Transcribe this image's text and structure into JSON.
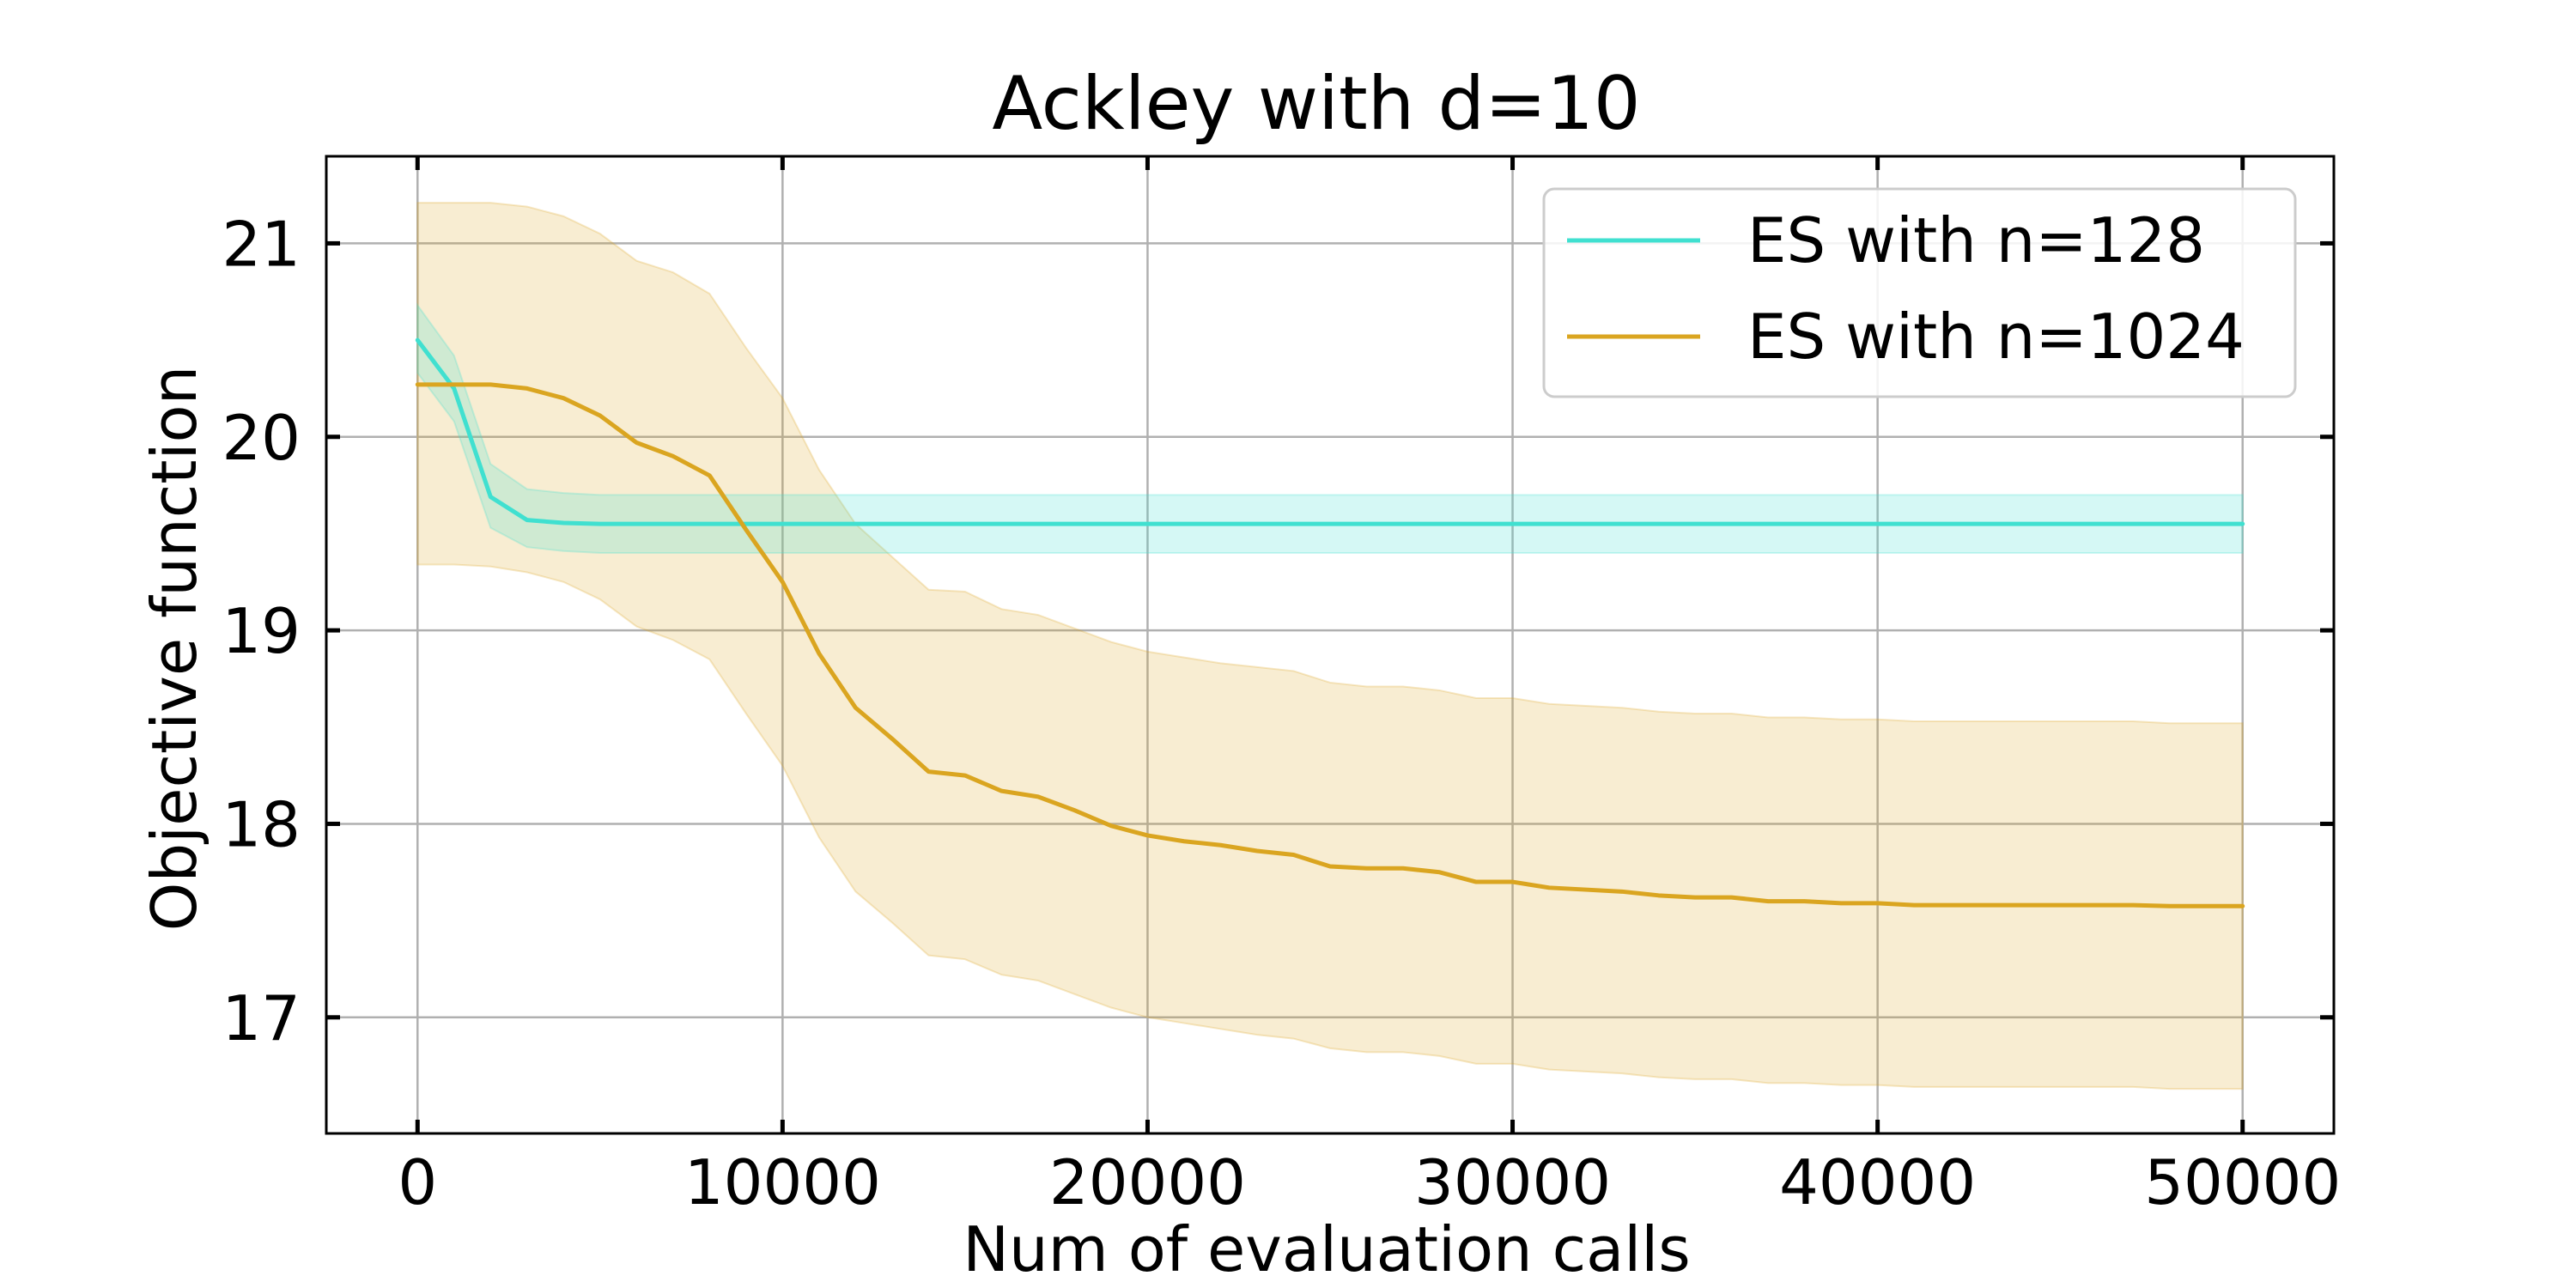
{
  "chart_data": {
    "type": "line",
    "title": "Ackley with d=10",
    "xlabel": "Num of evaluation calls",
    "ylabel": "Objective function",
    "xlim": [
      -2500,
      52500
    ],
    "ylim": [
      16.4,
      21.45
    ],
    "xticks": [
      0,
      10000,
      20000,
      30000,
      40000,
      50000
    ],
    "xtick_labels": [
      "0",
      "10000",
      "20000",
      "30000",
      "40000",
      "50000"
    ],
    "yticks": [
      17,
      18,
      19,
      20,
      21
    ],
    "ytick_labels": [
      "17",
      "18",
      "19",
      "20",
      "21"
    ],
    "grid": true,
    "legend_position": "top-right",
    "x": [
      0,
      1000,
      2000,
      3000,
      4000,
      5000,
      6000,
      7000,
      8000,
      9000,
      10000,
      11000,
      12000,
      13000,
      14000,
      15000,
      16000,
      17000,
      18000,
      19000,
      20000,
      21000,
      22000,
      23000,
      24000,
      25000,
      26000,
      27000,
      28000,
      29000,
      30000,
      31000,
      32000,
      33000,
      34000,
      35000,
      36000,
      37000,
      38000,
      39000,
      40000,
      41000,
      42000,
      43000,
      44000,
      45000,
      46000,
      47000,
      48000,
      49000,
      50000
    ],
    "series": [
      {
        "name": "ES with n=128",
        "color": "#40e0d0",
        "mean": [
          20.5,
          20.25,
          19.69,
          19.57,
          19.555,
          19.55,
          19.55,
          19.55,
          19.55,
          19.55,
          19.55,
          19.55,
          19.55,
          19.55,
          19.55,
          19.55,
          19.55,
          19.55,
          19.55,
          19.55,
          19.55,
          19.55,
          19.55,
          19.55,
          19.55,
          19.55,
          19.55,
          19.55,
          19.55,
          19.55,
          19.55,
          19.55,
          19.55,
          19.55,
          19.55,
          19.55,
          19.55,
          19.55,
          19.55,
          19.55,
          19.55,
          19.55,
          19.55,
          19.55,
          19.55,
          19.55,
          19.55,
          19.55,
          19.55,
          19.55,
          19.55
        ],
        "lower": [
          20.33,
          20.08,
          19.53,
          19.43,
          19.41,
          19.4,
          19.4,
          19.4,
          19.4,
          19.4,
          19.4,
          19.4,
          19.4,
          19.4,
          19.4,
          19.4,
          19.4,
          19.4,
          19.4,
          19.4,
          19.4,
          19.4,
          19.4,
          19.4,
          19.4,
          19.4,
          19.4,
          19.4,
          19.4,
          19.4,
          19.4,
          19.4,
          19.4,
          19.4,
          19.4,
          19.4,
          19.4,
          19.4,
          19.4,
          19.4,
          19.4,
          19.4,
          19.4,
          19.4,
          19.4,
          19.4,
          19.4,
          19.4,
          19.4,
          19.4,
          19.4
        ],
        "upper": [
          20.68,
          20.42,
          19.86,
          19.73,
          19.71,
          19.7,
          19.7,
          19.7,
          19.7,
          19.7,
          19.7,
          19.7,
          19.7,
          19.7,
          19.7,
          19.7,
          19.7,
          19.7,
          19.7,
          19.7,
          19.7,
          19.7,
          19.7,
          19.7,
          19.7,
          19.7,
          19.7,
          19.7,
          19.7,
          19.7,
          19.7,
          19.7,
          19.7,
          19.7,
          19.7,
          19.7,
          19.7,
          19.7,
          19.7,
          19.7,
          19.7,
          19.7,
          19.7,
          19.7,
          19.7,
          19.7,
          19.7,
          19.7,
          19.7,
          19.7,
          19.7
        ]
      },
      {
        "name": "ES with n=1024",
        "color": "#daa520",
        "mean": [
          20.27,
          20.27,
          20.27,
          20.25,
          20.2,
          20.11,
          19.97,
          19.9,
          19.8,
          19.52,
          19.25,
          18.88,
          18.6,
          18.44,
          18.27,
          18.25,
          18.17,
          18.14,
          18.07,
          17.99,
          17.94,
          17.91,
          17.89,
          17.86,
          17.84,
          17.78,
          17.77,
          17.77,
          17.75,
          17.7,
          17.7,
          17.67,
          17.66,
          17.65,
          17.63,
          17.62,
          17.62,
          17.6,
          17.6,
          17.59,
          17.59,
          17.58,
          17.58,
          17.58,
          17.58,
          17.58,
          17.58,
          17.58,
          17.575,
          17.575,
          17.575
        ],
        "lower": [
          19.34,
          19.34,
          19.33,
          19.3,
          19.25,
          19.16,
          19.02,
          18.95,
          18.85,
          18.57,
          18.3,
          17.93,
          17.65,
          17.49,
          17.32,
          17.3,
          17.22,
          17.19,
          17.12,
          17.05,
          17.0,
          16.97,
          16.94,
          16.91,
          16.89,
          16.84,
          16.82,
          16.82,
          16.8,
          16.76,
          16.76,
          16.73,
          16.72,
          16.71,
          16.69,
          16.68,
          16.68,
          16.66,
          16.66,
          16.65,
          16.65,
          16.64,
          16.64,
          16.64,
          16.64,
          16.64,
          16.64,
          16.64,
          16.63,
          16.63,
          16.63
        ],
        "upper": [
          21.21,
          21.21,
          21.21,
          21.19,
          21.14,
          21.05,
          20.91,
          20.85,
          20.74,
          20.46,
          20.2,
          19.83,
          19.55,
          19.38,
          19.21,
          19.2,
          19.11,
          19.08,
          19.01,
          18.94,
          18.89,
          18.86,
          18.83,
          18.81,
          18.79,
          18.73,
          18.71,
          18.71,
          18.69,
          18.65,
          18.65,
          18.62,
          18.61,
          18.6,
          18.58,
          18.57,
          18.57,
          18.55,
          18.55,
          18.54,
          18.54,
          18.53,
          18.53,
          18.53,
          18.53,
          18.53,
          18.53,
          18.53,
          18.52,
          18.52,
          18.52
        ]
      }
    ]
  }
}
